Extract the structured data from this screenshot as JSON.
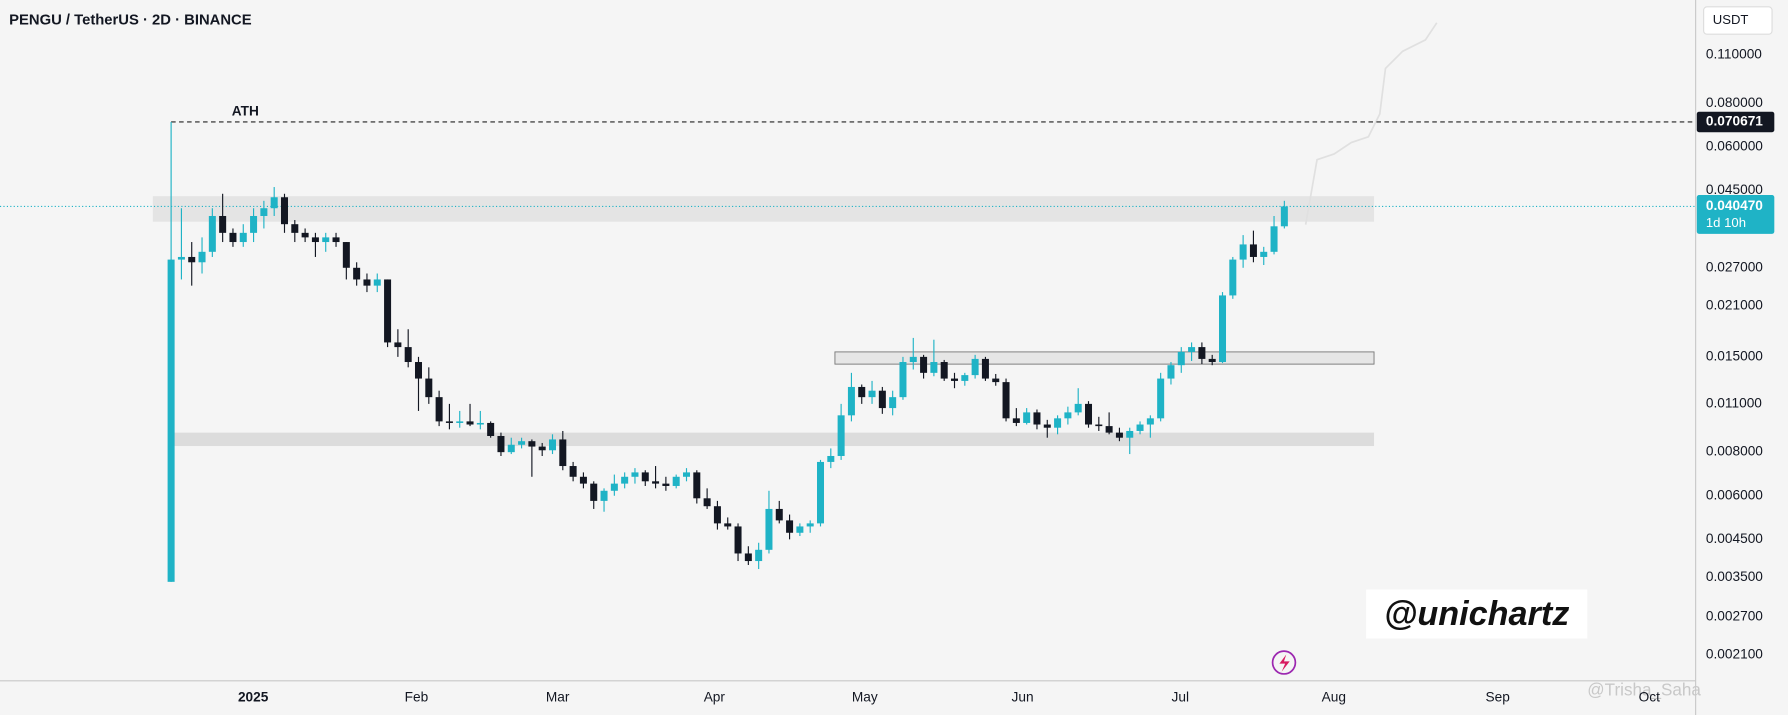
{
  "chart_data": {
    "type": "candlestick",
    "title": "PENGU / TetherUS · 2D · BINANCE",
    "unit": "USDT",
    "log_scale": true,
    "grid": false,
    "up_color": "#1fb3c6",
    "down_color": "#131722",
    "open": [
      0.0034,
      0.0285,
      0.029,
      0.028,
      0.03,
      0.038,
      0.034,
      0.032,
      0.034,
      0.038,
      0.04,
      0.043,
      0.036,
      0.034,
      0.033,
      0.032,
      0.033,
      0.032,
      0.027,
      0.025,
      0.024,
      0.025,
      0.0165,
      0.016,
      0.0145,
      0.013,
      0.0115,
      0.0098,
      0.0097,
      0.0098,
      0.0096,
      0.0097,
      0.0089,
      0.008,
      0.0084,
      0.0086,
      0.0083,
      0.0081,
      0.0087,
      0.0073,
      0.0068,
      0.0065,
      0.0058,
      0.0062,
      0.0065,
      0.0068,
      0.007,
      0.0066,
      0.0065,
      0.0064,
      0.0068,
      0.007,
      0.0059,
      0.0056,
      0.005,
      0.0049,
      0.0041,
      0.0039,
      0.0042,
      0.0055,
      0.0051,
      0.0047,
      0.0049,
      0.005,
      0.0075,
      0.0078,
      0.0102,
      0.0123,
      0.0115,
      0.012,
      0.0107,
      0.0115,
      0.0145,
      0.015,
      0.0135,
      0.0145,
      0.013,
      0.0128,
      0.0133,
      0.0148,
      0.013,
      0.0127,
      0.01,
      0.0097,
      0.0104,
      0.0096,
      0.0094,
      0.01,
      0.0104,
      0.011,
      0.0096,
      0.0095,
      0.0091,
      0.0088,
      0.0092,
      0.0096,
      0.01,
      0.013,
      0.0142,
      0.0155,
      0.016,
      0.0148,
      0.0145,
      0.0225,
      0.0285,
      0.0315,
      0.029,
      0.03,
      0.0355
    ],
    "high": [
      0.070671,
      0.04,
      0.032,
      0.033,
      0.04,
      0.044,
      0.035,
      0.036,
      0.04,
      0.042,
      0.046,
      0.044,
      0.037,
      0.035,
      0.034,
      0.034,
      0.034,
      0.032,
      0.028,
      0.026,
      0.026,
      0.025,
      0.018,
      0.018,
      0.015,
      0.014,
      0.012,
      0.011,
      0.0105,
      0.011,
      0.0105,
      0.0098,
      0.0091,
      0.0088,
      0.0088,
      0.0087,
      0.0085,
      0.009,
      0.0092,
      0.0075,
      0.007,
      0.0066,
      0.0063,
      0.0069,
      0.007,
      0.0072,
      0.0071,
      0.0073,
      0.0068,
      0.0069,
      0.0072,
      0.0071,
      0.0063,
      0.0058,
      0.0052,
      0.005,
      0.0043,
      0.0044,
      0.0062,
      0.0058,
      0.0053,
      0.005,
      0.0051,
      0.0076,
      0.0082,
      0.011,
      0.0135,
      0.0125,
      0.0128,
      0.0123,
      0.012,
      0.015,
      0.017,
      0.0152,
      0.0168,
      0.0147,
      0.0135,
      0.0135,
      0.0152,
      0.015,
      0.0134,
      0.013,
      0.0107,
      0.0107,
      0.0106,
      0.0099,
      0.0102,
      0.0108,
      0.0122,
      0.0112,
      0.0101,
      0.0104,
      0.0094,
      0.0094,
      0.0098,
      0.0102,
      0.0135,
      0.0145,
      0.016,
      0.0165,
      0.0165,
      0.0152,
      0.023,
      0.029,
      0.0335,
      0.0345,
      0.031,
      0.038,
      0.042
    ],
    "low": [
      0.0034,
      0.025,
      0.024,
      0.026,
      0.029,
      0.032,
      0.031,
      0.031,
      0.032,
      0.035,
      0.038,
      0.034,
      0.032,
      0.032,
      0.029,
      0.03,
      0.031,
      0.025,
      0.024,
      0.023,
      0.023,
      0.016,
      0.015,
      0.014,
      0.0105,
      0.011,
      0.0095,
      0.0093,
      0.0094,
      0.0095,
      0.0093,
      0.0088,
      0.0078,
      0.0079,
      0.0082,
      0.0068,
      0.0078,
      0.0079,
      0.0071,
      0.0066,
      0.0063,
      0.0055,
      0.0054,
      0.006,
      0.0063,
      0.0065,
      0.0064,
      0.0063,
      0.0062,
      0.0063,
      0.0066,
      0.0057,
      0.0055,
      0.0048,
      0.0048,
      0.0039,
      0.0038,
      0.0037,
      0.0041,
      0.005,
      0.0045,
      0.0046,
      0.0047,
      0.0049,
      0.0072,
      0.0076,
      0.0098,
      0.011,
      0.011,
      0.0103,
      0.0102,
      0.0113,
      0.0138,
      0.013,
      0.0132,
      0.0128,
      0.0122,
      0.0124,
      0.013,
      0.0128,
      0.0124,
      0.0098,
      0.0095,
      0.0096,
      0.0093,
      0.0088,
      0.009,
      0.0096,
      0.0102,
      0.0094,
      0.0092,
      0.009,
      0.0086,
      0.0079,
      0.009,
      0.0088,
      0.0098,
      0.0125,
      0.0135,
      0.0146,
      0.0143,
      0.0142,
      0.0144,
      0.022,
      0.027,
      0.028,
      0.0275,
      0.0295,
      0.035
    ],
    "close": [
      0.0285,
      0.029,
      0.028,
      0.03,
      0.038,
      0.034,
      0.032,
      0.034,
      0.038,
      0.04,
      0.043,
      0.036,
      0.034,
      0.033,
      0.032,
      0.033,
      0.032,
      0.027,
      0.025,
      0.024,
      0.025,
      0.0165,
      0.016,
      0.0145,
      0.013,
      0.0115,
      0.0098,
      0.0097,
      0.0098,
      0.0096,
      0.0097,
      0.0089,
      0.008,
      0.0084,
      0.0086,
      0.0083,
      0.0081,
      0.0087,
      0.0073,
      0.0068,
      0.0065,
      0.0058,
      0.0062,
      0.0065,
      0.0068,
      0.007,
      0.0066,
      0.0065,
      0.0064,
      0.0068,
      0.007,
      0.0059,
      0.0056,
      0.005,
      0.0049,
      0.0041,
      0.0039,
      0.0042,
      0.0055,
      0.0051,
      0.0047,
      0.0049,
      0.005,
      0.0075,
      0.0078,
      0.0102,
      0.0123,
      0.0115,
      0.012,
      0.0107,
      0.0115,
      0.0145,
      0.015,
      0.0135,
      0.0145,
      0.013,
      0.0128,
      0.0133,
      0.0148,
      0.013,
      0.0127,
      0.01,
      0.0097,
      0.0104,
      0.0096,
      0.0094,
      0.01,
      0.0104,
      0.011,
      0.0096,
      0.0095,
      0.0091,
      0.0088,
      0.0092,
      0.0096,
      0.01,
      0.013,
      0.0142,
      0.0155,
      0.016,
      0.0148,
      0.0145,
      0.0225,
      0.0285,
      0.0315,
      0.029,
      0.03,
      0.0355,
      0.04047
    ],
    "xlim": [
      -16.6,
      147.9
    ],
    "ylim": [
      0.00177,
      0.158
    ],
    "xticks": [
      {
        "value": 7.96,
        "label": "2025"
      },
      {
        "value": 23.8,
        "label": "Feb"
      },
      {
        "value": 37.5,
        "label": "Mar"
      },
      {
        "value": 52.7,
        "label": "Apr"
      },
      {
        "value": 67.3,
        "label": "May"
      },
      {
        "value": 82.6,
        "label": "Jun"
      },
      {
        "value": 97.9,
        "label": "Jul"
      },
      {
        "value": 112.8,
        "label": "Aug"
      },
      {
        "value": 128.7,
        "label": "Sep"
      },
      {
        "value": 143.4,
        "label": "Oct"
      }
    ],
    "yticks": [
      {
        "value": 0.11,
        "label": "0.110000"
      },
      {
        "value": 0.08,
        "label": "0.080000"
      },
      {
        "value": 0.06,
        "label": "0.060000"
      },
      {
        "value": 0.045,
        "label": "0.045000"
      },
      {
        "value": 0.027,
        "label": "0.027000"
      },
      {
        "value": 0.021,
        "label": "0.021000"
      },
      {
        "value": 0.015,
        "label": "0.015000"
      },
      {
        "value": 0.011,
        "label": "0.011000"
      },
      {
        "value": 0.008,
        "label": "0.008000"
      },
      {
        "value": 0.006,
        "label": "0.006000"
      },
      {
        "value": 0.0045,
        "label": "0.004500"
      },
      {
        "value": 0.0035,
        "label": "0.003500"
      },
      {
        "value": 0.0027,
        "label": "0.002700"
      },
      {
        "value": 0.0021,
        "label": "0.002100"
      }
    ],
    "zones": [
      {
        "xlim": [
          -1.77,
          116.7
        ],
        "ylim": [
          0.0366,
          0.0433
        ]
      },
      {
        "xlim": [
          64.4,
          116.7
        ],
        "ylim": [
          0.0143,
          0.0155
        ]
      },
      {
        "xlim": [
          0.2,
          116.7
        ],
        "ylim": [
          0.00833,
          0.0091
        ]
      }
    ],
    "ath": {
      "text": "ATH",
      "value": 0.070671,
      "value_label": "0.070671"
    },
    "last_price": {
      "value": 0.04047,
      "label": "0.040470",
      "countdown": "1d 10h"
    },
    "watermark": "@unichartz",
    "credit": "@Trisha_Saha"
  }
}
